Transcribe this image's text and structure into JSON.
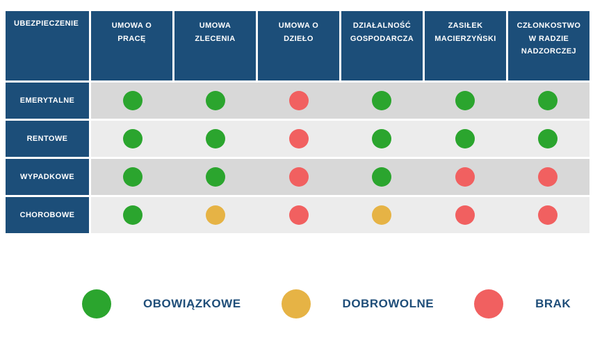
{
  "chart_data": {
    "type": "table",
    "corner_label": "UBEZPIECZENIE",
    "columns": [
      "UMOWA O PRACĘ",
      "UMOWA ZLECENIA",
      "UMOWA O DZIEŁO",
      "DZIAŁALNOŚĆ GOSPODARCZA",
      "ZASIŁEK MACIERZYŃSKI",
      "CZŁONKOSTWO W RADZIE NADZORCZEJ"
    ],
    "rows": [
      {
        "label": "EMERYTALNE",
        "values": [
          "green",
          "green",
          "red",
          "green",
          "green",
          "green"
        ]
      },
      {
        "label": "RENTOWE",
        "values": [
          "green",
          "green",
          "red",
          "green",
          "green",
          "green"
        ]
      },
      {
        "label": "WYPADKOWE",
        "values": [
          "green",
          "green",
          "red",
          "green",
          "red",
          "red"
        ]
      },
      {
        "label": "CHOROBOWE",
        "values": [
          "green",
          "yellow",
          "red",
          "yellow",
          "red",
          "red"
        ]
      }
    ],
    "legend": [
      {
        "color": "green",
        "label": "OBOWIĄZKOWE"
      },
      {
        "color": "yellow",
        "label": "DOBROWOLNE"
      },
      {
        "color": "red",
        "label": "BRAK"
      }
    ],
    "value_meanings": {
      "green": "OBOWIĄZKOWE",
      "yellow": "DOBROWOLNE",
      "red": "BRAK"
    }
  },
  "colors": {
    "header_bg": "#1C4E79",
    "row_dark": "#D8D8D8",
    "row_light": "#ECECEC",
    "green": "#2BA52E",
    "yellow": "#E6B345",
    "red": "#F16060",
    "legend_text": "#1F4E79"
  }
}
